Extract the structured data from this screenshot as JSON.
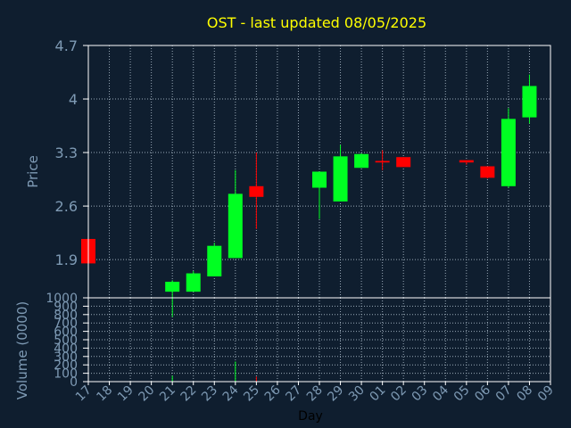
{
  "title": "OST - last updated 08/05/2025",
  "colors": {
    "background": "#0f1e2f",
    "plot_background": "#0f1e2f",
    "axis_text": "#7e9ab4",
    "title_text": "#ffff00",
    "frame": "#ffffff",
    "grid": "#9aaab8",
    "up": "#00ff22",
    "down": "#ff0000",
    "xlabel_text": "#000000"
  },
  "chart_data": [
    {
      "type": "candlestick",
      "ylabel": "Price",
      "ylim": [
        1.4,
        4.7
      ],
      "yticks": [
        "1.9",
        "2.6",
        "3.3",
        "4",
        "4.7"
      ],
      "grid": true,
      "categories": [
        "17",
        "18",
        "19",
        "20",
        "21",
        "22",
        "23",
        "24",
        "25",
        "26",
        "27",
        "28",
        "29",
        "30",
        "01",
        "02",
        "03",
        "04",
        "05",
        "06",
        "07",
        "08",
        "09"
      ],
      "candles": [
        {
          "x": "17",
          "open": 2.17,
          "high": 2.17,
          "low": 1.85,
          "close": 1.85
        },
        {
          "x": "21",
          "open": 1.48,
          "high": 1.63,
          "low": 1.15,
          "close": 1.61
        },
        {
          "x": "22",
          "open": 1.48,
          "high": 1.75,
          "low": 1.48,
          "close": 1.72
        },
        {
          "x": "23",
          "open": 1.68,
          "high": 2.12,
          "low": 1.68,
          "close": 2.08
        },
        {
          "x": "24",
          "open": 1.92,
          "high": 3.07,
          "low": 1.92,
          "close": 2.76
        },
        {
          "x": "25",
          "open": 2.86,
          "high": 3.3,
          "low": 2.3,
          "close": 2.72
        },
        {
          "x": "28",
          "open": 2.84,
          "high": 3.05,
          "low": 2.43,
          "close": 3.05
        },
        {
          "x": "29",
          "open": 2.66,
          "high": 3.4,
          "low": 2.66,
          "close": 3.25
        },
        {
          "x": "30",
          "open": 3.1,
          "high": 3.29,
          "low": 3.1,
          "close": 3.28
        },
        {
          "x": "01",
          "open": 3.19,
          "high": 3.33,
          "low": 3.07,
          "close": 3.17
        },
        {
          "x": "02",
          "open": 3.24,
          "high": 3.24,
          "low": 3.11,
          "close": 3.11
        },
        {
          "x": "05",
          "open": 3.2,
          "high": 3.2,
          "low": 3.14,
          "close": 3.17
        },
        {
          "x": "06",
          "open": 3.12,
          "high": 3.12,
          "low": 2.96,
          "close": 2.97
        },
        {
          "x": "07",
          "open": 2.86,
          "high": 3.88,
          "low": 2.84,
          "close": 3.74
        },
        {
          "x": "08",
          "open": 3.76,
          "high": 4.32,
          "low": 3.68,
          "close": 4.17
        }
      ]
    },
    {
      "type": "bar",
      "ylabel": "Volume (0000)",
      "ylim": [
        0,
        1000
      ],
      "yticks": [
        "0",
        "100",
        "200",
        "300",
        "400",
        "500",
        "600",
        "700",
        "800",
        "900",
        "1000"
      ],
      "grid": true,
      "xlabel": "Day",
      "categories": [
        "17",
        "18",
        "19",
        "20",
        "21",
        "22",
        "23",
        "24",
        "25",
        "26",
        "27",
        "28",
        "29",
        "30",
        "01",
        "02",
        "03",
        "04",
        "05",
        "06",
        "07",
        "08",
        "09"
      ],
      "bars": [
        {
          "x": "21",
          "value": 70,
          "direction": "up"
        },
        {
          "x": "24",
          "value": 240,
          "direction": "up"
        },
        {
          "x": "25",
          "value": 60,
          "direction": "down"
        }
      ]
    }
  ]
}
